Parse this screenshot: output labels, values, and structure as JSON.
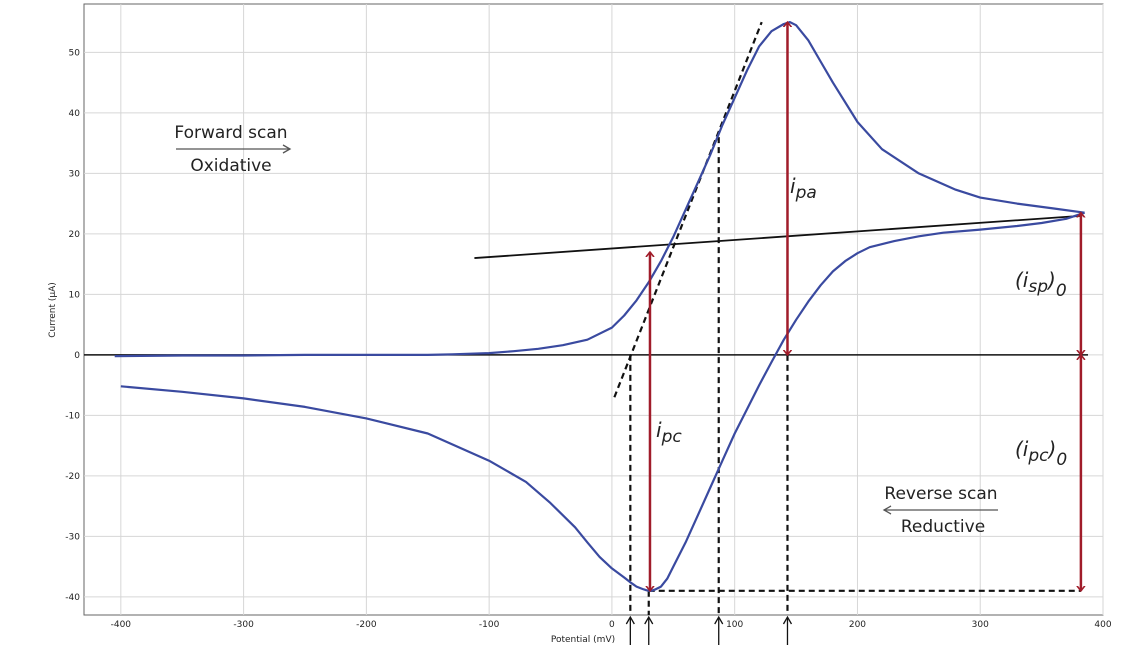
{
  "chart_data": {
    "type": "line",
    "title": "",
    "xlabel": "Potential (mV)",
    "ylabel": "Current (μA)",
    "xlim": [
      -430,
      400
    ],
    "ylim": [
      -43,
      58
    ],
    "grid": true,
    "x_ticks": [
      -400,
      -300,
      -200,
      -100,
      0,
      100,
      200,
      300,
      400
    ],
    "y_ticks": [
      -40,
      -30,
      -20,
      -10,
      0,
      10,
      20,
      30,
      40,
      50
    ],
    "series": [
      {
        "color": "#3a4aa0",
        "x": [
          -405,
          -350,
          -300,
          -250,
          -200,
          -150,
          -130,
          -100,
          -80,
          -60,
          -40,
          -20,
          0,
          10,
          20,
          30,
          40,
          50,
          60,
          70,
          80,
          90,
          100,
          110,
          120,
          130,
          140,
          145,
          150,
          160,
          170,
          180,
          200,
          220,
          250,
          280,
          300,
          330,
          360,
          385
        ],
        "y": [
          -0.2,
          -0.1,
          -0.1,
          0,
          0,
          0,
          0.1,
          0.3,
          0.6,
          1.0,
          1.6,
          2.5,
          4.5,
          6.5,
          9,
          12,
          15.5,
          19.5,
          24,
          28.5,
          33,
          38,
          42.5,
          47,
          51,
          53.5,
          54.7,
          55,
          54.5,
          52,
          48.5,
          45,
          38.5,
          34,
          30,
          27.3,
          26,
          25,
          24.2,
          23.5
        ]
      },
      {
        "color": "#3a4aa0",
        "x": [
          385,
          370,
          350,
          330,
          300,
          270,
          250,
          230,
          210,
          200,
          190,
          180,
          170,
          160,
          150,
          140,
          130,
          120,
          110,
          100,
          90,
          80,
          70,
          60,
          50,
          45,
          40,
          35,
          32,
          30,
          28,
          25,
          20,
          15,
          10,
          0,
          -10,
          -20,
          -30,
          -50,
          -70,
          -100,
          -150,
          -200,
          -250,
          -300,
          -350,
          -400
        ],
        "y": [
          23.5,
          22.5,
          21.8,
          21.3,
          20.7,
          20.2,
          19.6,
          18.8,
          17.8,
          16.8,
          15.5,
          13.8,
          11.5,
          8.8,
          5.8,
          2.5,
          -1.2,
          -5,
          -9,
          -13,
          -17.5,
          -22,
          -26.5,
          -31,
          -35,
          -37,
          -38.3,
          -38.8,
          -39,
          -39,
          -38.9,
          -38.7,
          -38.3,
          -37.6,
          -36.8,
          -35.3,
          -33.4,
          -31,
          -28.5,
          -24.5,
          -21,
          -17.5,
          -13,
          -10.5,
          -8.6,
          -7.2,
          -6.1,
          -5.2
        ]
      }
    ],
    "annotations": {
      "forward_label": "Forward scan",
      "oxidative_label": "Oxidative",
      "reverse_label": "Reverse scan",
      "reductive_label": "Reductive",
      "i_pa": "i",
      "i_pa_sub": "pa",
      "i_pc": "i",
      "i_pc_sub": "pc",
      "isp0_open": "(i",
      "isp0_sub": "sp",
      "isp0_close": ")",
      "isp0_zero": "0",
      "ipc0_open": "(i",
      "ipc0_sub": "pc",
      "ipc0_close": ")",
      "ipc0_zero": "0"
    },
    "baseline_line": {
      "x": [
        -112,
        383
      ],
      "y": [
        16,
        23
      ]
    },
    "tangent_line": {
      "x": [
        2,
        122
      ],
      "y": [
        -7,
        55
      ]
    },
    "vertical_dashes": [
      {
        "x": 15,
        "y_top": 0
      },
      {
        "x": 87,
        "y_top": 36
      },
      {
        "x": 143,
        "y_top": 0
      },
      {
        "x": 30,
        "y_top": -39
      }
    ],
    "arrow_markers_x": [
      15,
      30,
      87,
      143
    ],
    "ipa_arrow": {
      "x": 143,
      "y_from": 0,
      "y_to": 55
    },
    "ipc_arrow": {
      "x": 31,
      "y_from": -39,
      "y_to": 17
    },
    "isp0_arrow": {
      "x": 382,
      "y_from": 0,
      "y_to": 23.5
    },
    "ipc0_arrow": {
      "x": 382,
      "y_from": -39,
      "y_to": 0
    },
    "bottom_dash": {
      "x_from": 30,
      "x_to": 382,
      "y": -39
    },
    "arrow_color": "#a01c2a"
  }
}
